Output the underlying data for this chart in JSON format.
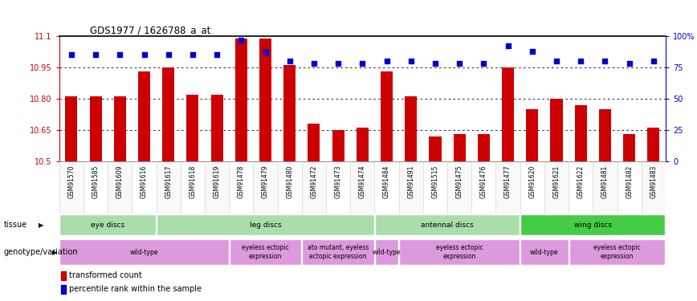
{
  "title": "GDS1977 / 1626788_a_at",
  "samples": [
    "GSM91570",
    "GSM91585",
    "GSM91609",
    "GSM91616",
    "GSM91617",
    "GSM91618",
    "GSM91619",
    "GSM91478",
    "GSM91479",
    "GSM91480",
    "GSM91472",
    "GSM91473",
    "GSM91474",
    "GSM91484",
    "GSM91491",
    "GSM91515",
    "GSM91475",
    "GSM91476",
    "GSM91477",
    "GSM91620",
    "GSM91621",
    "GSM91622",
    "GSM91481",
    "GSM91482",
    "GSM91483"
  ],
  "bar_values": [
    10.81,
    10.81,
    10.81,
    10.93,
    10.95,
    10.82,
    10.82,
    11.09,
    11.09,
    10.96,
    10.68,
    10.65,
    10.66,
    10.93,
    10.81,
    10.62,
    10.63,
    10.63,
    10.95,
    10.75,
    10.8,
    10.77,
    10.75,
    10.63,
    10.66
  ],
  "percentile_values": [
    85,
    85,
    85,
    85,
    85,
    85,
    85,
    97,
    87,
    80,
    78,
    78,
    78,
    80,
    80,
    78,
    78,
    78,
    92,
    88,
    80,
    80,
    80,
    78,
    80
  ],
  "ymin": 10.5,
  "ymax": 11.1,
  "yticks": [
    10.5,
    10.65,
    10.8,
    10.95,
    11.1
  ],
  "ytick_labels": [
    "10.5",
    "10.65",
    "10.80",
    "10.95",
    "11.1"
  ],
  "right_yticks": [
    0,
    25,
    50,
    75,
    100
  ],
  "right_ytick_labels": [
    "0",
    "25",
    "50",
    "75",
    "100%"
  ],
  "bar_color": "#cc0000",
  "dot_color": "#0000cc",
  "tissue_groups": [
    {
      "label": "eye discs",
      "start": 0,
      "end": 4,
      "color": "#aaddaa"
    },
    {
      "label": "leg discs",
      "start": 4,
      "end": 13,
      "color": "#aaddaa"
    },
    {
      "label": "antennal discs",
      "start": 13,
      "end": 19,
      "color": "#aaddaa"
    },
    {
      "label": "wing discs",
      "start": 19,
      "end": 25,
      "color": "#44cc44"
    }
  ],
  "genotype_groups": [
    {
      "label": "wild-type",
      "start": 0,
      "end": 7,
      "color": "#dd99dd"
    },
    {
      "label": "eyeless ectopic\nexpression",
      "start": 7,
      "end": 10,
      "color": "#dd99dd"
    },
    {
      "label": "ato mutant, eyeless\nectopic expression",
      "start": 10,
      "end": 13,
      "color": "#dd99dd"
    },
    {
      "label": "wild-type",
      "start": 13,
      "end": 14,
      "color": "#dd99dd"
    },
    {
      "label": "eyeless ectopic\nexpression",
      "start": 14,
      "end": 19,
      "color": "#dd99dd"
    },
    {
      "label": "wild-type",
      "start": 19,
      "end": 21,
      "color": "#dd99dd"
    },
    {
      "label": "eyeless ectopic\nexpression",
      "start": 21,
      "end": 25,
      "color": "#dd99dd"
    }
  ]
}
